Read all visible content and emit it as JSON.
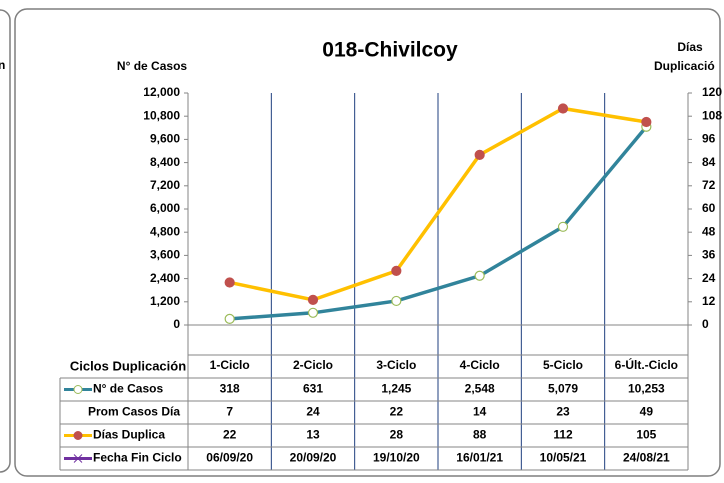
{
  "left_panel_text": "n",
  "chart_data": {
    "type": "line",
    "title": "018-Chivilcoy",
    "ylabel": "N° de Casos",
    "y2label": [
      "Días",
      "Duplicació"
    ],
    "table_header": "Ciclos Duplicación",
    "categories": [
      "1-Ciclo",
      "2-Ciclo",
      "3-Ciclo",
      "4-Ciclo",
      "5-Ciclo",
      "6-Últ.-Ciclo"
    ],
    "ylim": [
      0,
      12000
    ],
    "yticks": [
      {
        "value": 0,
        "label": "0"
      },
      {
        "value": 1200,
        "label": "1,200"
      },
      {
        "value": 2400,
        "label": "2,400"
      },
      {
        "value": 3600,
        "label": "3,600"
      },
      {
        "value": 4800,
        "label": "4,800"
      },
      {
        "value": 6000,
        "label": "6,000"
      },
      {
        "value": 7200,
        "label": "7,200"
      },
      {
        "value": 8400,
        "label": "8,400"
      },
      {
        "value": 9600,
        "label": "9,600"
      },
      {
        "value": 10800,
        "label": "10,800"
      },
      {
        "value": 12000,
        "label": "12,000"
      }
    ],
    "y2lim": [
      0,
      120
    ],
    "y2ticks": [
      0,
      12,
      24,
      36,
      48,
      60,
      72,
      84,
      96,
      108,
      120
    ],
    "series": [
      {
        "name": "N° de Casos",
        "color": "#31849b",
        "marker_fill": "#ffffff",
        "marker_edge": "#9bbb59",
        "values": [
          318,
          631,
          1245,
          2548,
          5079,
          10253
        ],
        "value_labels": [
          "318",
          "631",
          "1,245",
          "2,548",
          "5,079",
          "10,253"
        ]
      },
      {
        "name": "Prom Casos Día",
        "values": [
          7,
          24,
          22,
          14,
          23,
          49
        ]
      },
      {
        "name": "Días Duplica",
        "axis": "y2",
        "color": "#ffc000",
        "marker_fill": "#c0504d",
        "marker_edge": "#c0504d",
        "values": [
          22,
          13,
          28,
          88,
          112,
          105
        ]
      },
      {
        "name": "Fecha Fin Ciclo",
        "color": "#7030a0",
        "labels": [
          "06/09/20",
          "20/09/20",
          "19/10/20",
          "16/01/21",
          "10/05/21",
          "24/08/21"
        ]
      }
    ]
  }
}
